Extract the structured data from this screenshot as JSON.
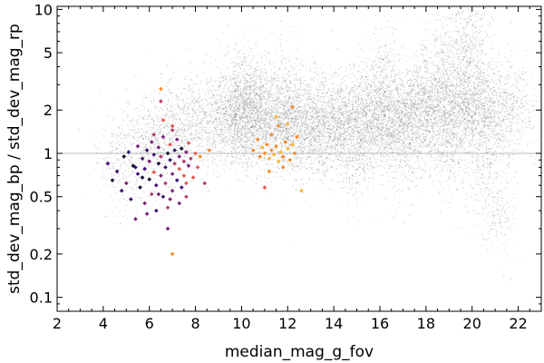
{
  "chart_data": {
    "type": "scatter",
    "xlabel": "median_mag_g_fov",
    "ylabel": "std_dev_mag_bp / std_dev_mag_rp",
    "xlim": [
      2,
      23
    ],
    "ylim": [
      0.08,
      10.5
    ],
    "yscale": "log",
    "grid": false,
    "legend": "none",
    "x_ticks": [
      2,
      4,
      6,
      8,
      10,
      12,
      14,
      16,
      18,
      20,
      22
    ],
    "x_tick_labels": [
      "2",
      "4",
      "6",
      "8",
      "10",
      "12",
      "14",
      "16",
      "18",
      "20",
      "22"
    ],
    "y_ticks": [
      0.1,
      0.2,
      0.5,
      1,
      2,
      5,
      10
    ],
    "y_tick_labels": [
      "0.1",
      "0.2",
      "0.5",
      "1",
      "2",
      "5",
      "10"
    ],
    "reference_line": {
      "y": 1,
      "color": "#bbbbbb"
    },
    "colors": {
      "background_density": "#555555",
      "palette": [
        "#0d0829",
        "#3b0f6f",
        "#7a1f7a",
        "#b33a6b",
        "#e0594d",
        "#f58a26",
        "#fbb533"
      ]
    },
    "series": [
      {
        "kind": "background_density",
        "color": "#555555",
        "points": [
          [
            4.5,
            0.95
          ],
          [
            5.2,
            1.0
          ],
          [
            6.0,
            1.1
          ],
          [
            6.5,
            1.3
          ],
          [
            7.0,
            1.4
          ],
          [
            7.5,
            1.55
          ],
          [
            8.0,
            1.6
          ],
          [
            8.5,
            1.65
          ],
          [
            9.0,
            1.7
          ],
          [
            9.5,
            1.75
          ],
          [
            10.0,
            1.8
          ],
          [
            10.2,
            2.0
          ],
          [
            10.5,
            1.9
          ],
          [
            11.0,
            1.7
          ],
          [
            11.5,
            1.6
          ],
          [
            12.0,
            1.6
          ],
          [
            12.5,
            1.55
          ],
          [
            13.0,
            1.55
          ],
          [
            13.5,
            1.6
          ],
          [
            14.0,
            1.6
          ],
          [
            14.5,
            1.65
          ],
          [
            15.0,
            1.7
          ],
          [
            15.5,
            1.7
          ],
          [
            16.0,
            1.75
          ],
          [
            16.5,
            1.8
          ],
          [
            17.0,
            1.85
          ],
          [
            17.5,
            1.9
          ],
          [
            18.0,
            1.95
          ],
          [
            18.5,
            2.0
          ],
          [
            19.0,
            2.1
          ],
          [
            19.5,
            2.2
          ],
          [
            20.0,
            2.3
          ],
          [
            20.5,
            2.2
          ],
          [
            21.0,
            1.6
          ],
          [
            21.5,
            2.0
          ],
          [
            22.0,
            2.1
          ],
          [
            10.0,
            3.0
          ],
          [
            12.0,
            2.8
          ],
          [
            16.0,
            3.5
          ],
          [
            18.5,
            4.5
          ],
          [
            19.5,
            5.5
          ],
          [
            20.0,
            7.0
          ],
          [
            15.0,
            0.9
          ],
          [
            17.0,
            1.0
          ],
          [
            19.0,
            1.0
          ],
          [
            20.5,
            0.9
          ],
          [
            21.0,
            0.4
          ]
        ]
      },
      {
        "kind": "highlighted_stars",
        "points": [
          [
            4.2,
            0.85,
            0.15
          ],
          [
            4.4,
            0.65,
            0.05
          ],
          [
            4.6,
            0.75,
            0.1
          ],
          [
            4.8,
            0.55,
            0.2
          ],
          [
            4.9,
            0.95,
            0.05
          ],
          [
            5.0,
            0.62,
            0.3
          ],
          [
            5.1,
            1.02,
            0.1
          ],
          [
            5.2,
            0.48,
            0.15
          ],
          [
            5.3,
            0.82,
            0.05
          ],
          [
            5.4,
            0.35,
            0.25
          ],
          [
            5.5,
            0.72,
            0.1
          ],
          [
            5.5,
            1.12,
            0.4
          ],
          [
            5.6,
            0.58,
            0.05
          ],
          [
            5.7,
            0.92,
            0.2
          ],
          [
            5.8,
            0.45,
            0.35
          ],
          [
            5.8,
            0.78,
            0.1
          ],
          [
            5.9,
            1.05,
            0.15
          ],
          [
            6.0,
            0.66,
            0.05
          ],
          [
            6.0,
            0.88,
            0.3
          ],
          [
            6.1,
            0.52,
            0.45
          ],
          [
            6.1,
            1.2,
            0.25
          ],
          [
            6.2,
            0.98,
            0.1
          ],
          [
            6.2,
            0.74,
            0.6
          ],
          [
            6.3,
            0.6,
            0.2
          ],
          [
            6.3,
            0.4,
            0.15
          ],
          [
            6.4,
            1.1,
            0.35
          ],
          [
            6.4,
            0.85,
            0.05
          ],
          [
            6.5,
            2.3,
            0.5
          ],
          [
            6.5,
            0.7,
            0.25
          ],
          [
            6.5,
            0.95,
            0.45
          ],
          [
            6.6,
            0.5,
            0.1
          ],
          [
            6.6,
            1.3,
            0.3
          ],
          [
            6.7,
            0.8,
            0.15
          ],
          [
            6.7,
            0.62,
            0.55
          ],
          [
            6.8,
            1.0,
            0.05
          ],
          [
            6.8,
            0.3,
            0.4
          ],
          [
            6.9,
            0.9,
            0.2
          ],
          [
            6.9,
            1.15,
            0.65
          ],
          [
            7.0,
            0.72,
            0.35
          ],
          [
            7.0,
            0.55,
            0.25
          ],
          [
            7.0,
            0.2,
            0.8
          ],
          [
            7.1,
            1.05,
            0.1
          ],
          [
            7.1,
            0.85,
            0.5
          ],
          [
            7.2,
            0.65,
            0.15
          ],
          [
            7.2,
            1.25,
            0.4
          ],
          [
            7.3,
            0.95,
            0.3
          ],
          [
            7.3,
            0.78,
            0.6
          ],
          [
            7.4,
            0.58,
            0.2
          ],
          [
            7.4,
            1.08,
            0.05
          ],
          [
            7.5,
            0.88,
            0.45
          ],
          [
            7.5,
            0.7,
            0.7
          ],
          [
            7.6,
            1.02,
            0.35
          ],
          [
            7.6,
            0.5,
            0.55
          ],
          [
            7.7,
            0.82,
            0.25
          ],
          [
            7.7,
            1.18,
            0.6
          ],
          [
            7.8,
            0.92,
            0.5
          ],
          [
            7.9,
            0.68,
            0.65
          ],
          [
            8.0,
            1.0,
            0.7
          ],
          [
            8.1,
            0.8,
            0.6
          ],
          [
            8.2,
            0.95,
            0.75
          ],
          [
            8.4,
            0.62,
            0.55
          ],
          [
            8.6,
            1.05,
            0.8
          ],
          [
            6.4,
            0.52,
            0.3
          ],
          [
            5.9,
            0.38,
            0.35
          ],
          [
            6.8,
            0.42,
            0.5
          ],
          [
            7.3,
            0.45,
            0.4
          ],
          [
            5.4,
            0.8,
            0.12
          ],
          [
            6.2,
            1.35,
            0.55
          ],
          [
            6.5,
            2.8,
            0.8
          ],
          [
            6.6,
            1.7,
            0.6
          ],
          [
            7.0,
            1.45,
            0.45
          ],
          [
            6.9,
            0.48,
            0.3
          ],
          [
            5.7,
            0.68,
            0.08
          ],
          [
            7.6,
            0.62,
            0.62
          ],
          [
            7.0,
            1.55,
            0.62
          ],
          [
            10.5,
            1.05,
            0.9
          ],
          [
            10.8,
            0.95,
            0.85
          ],
          [
            10.9,
            1.1,
            0.95
          ],
          [
            11.0,
            1.0,
            0.9
          ],
          [
            11.1,
            1.15,
            0.85
          ],
          [
            11.2,
            0.92,
            1.0
          ],
          [
            11.3,
            1.05,
            0.8
          ],
          [
            11.4,
            0.98,
            0.95
          ],
          [
            11.5,
            1.12,
            0.88
          ],
          [
            11.6,
            0.88,
            0.92
          ],
          [
            11.7,
            1.02,
            0.98
          ],
          [
            11.8,
            0.95,
            0.82
          ],
          [
            11.9,
            1.2,
            0.9
          ],
          [
            12.0,
            1.08,
            0.95
          ],
          [
            12.1,
            0.9,
            0.85
          ],
          [
            12.2,
            1.15,
            0.92
          ],
          [
            12.3,
            1.0,
            0.88
          ],
          [
            11.0,
            0.58,
            0.7
          ],
          [
            11.3,
            1.35,
            0.85
          ],
          [
            11.6,
            1.55,
            0.9
          ],
          [
            12.0,
            1.6,
            0.95
          ],
          [
            12.2,
            2.1,
            0.85
          ],
          [
            11.5,
            1.8,
            0.92
          ],
          [
            12.4,
            1.3,
            0.88
          ],
          [
            12.6,
            0.55,
            0.95
          ],
          [
            10.7,
            1.25,
            0.8
          ],
          [
            11.2,
            0.75,
            0.9
          ],
          [
            11.8,
            0.8,
            0.85
          ]
        ]
      }
    ]
  }
}
